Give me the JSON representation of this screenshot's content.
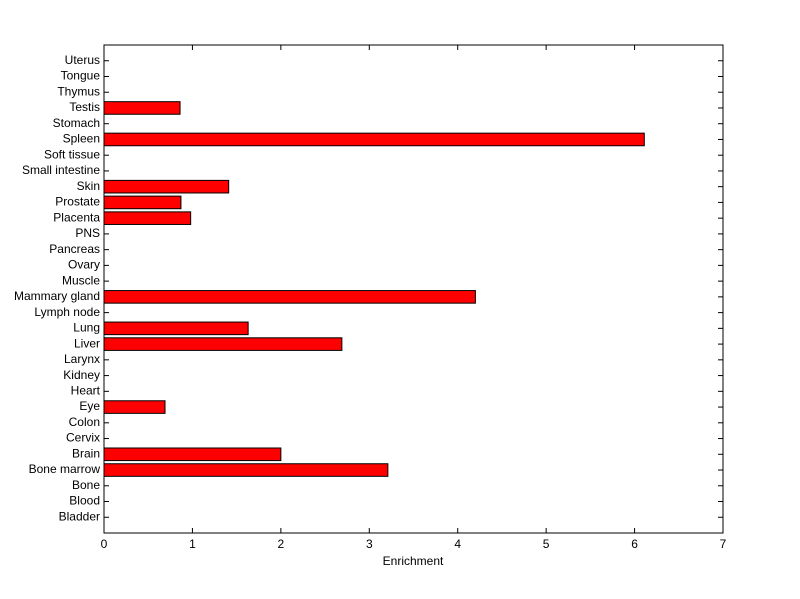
{
  "chart_data": {
    "type": "barh",
    "xlabel": "Enrichment",
    "categories": [
      "Bladder",
      "Blood",
      "Bone",
      "Bone marrow",
      "Brain",
      "Cervix",
      "Colon",
      "Eye",
      "Heart",
      "Kidney",
      "Larynx",
      "Liver",
      "Lung",
      "Lymph node",
      "Mammary gland",
      "Muscle",
      "Ovary",
      "Pancreas",
      "PNS",
      "Placenta",
      "Prostate",
      "Skin",
      "Small intestine",
      "Soft tissue",
      "Spleen",
      "Stomach",
      "Testis",
      "Thymus",
      "Tongue",
      "Uterus"
    ],
    "values": [
      0,
      0,
      0,
      3.21,
      2.0,
      0,
      0,
      0.69,
      0,
      0,
      0,
      2.69,
      1.63,
      0,
      4.2,
      0,
      0,
      0,
      0,
      0.98,
      0.87,
      1.41,
      0,
      0,
      6.11,
      0,
      0.86,
      0,
      0,
      0
    ],
    "color": "#ff0000",
    "xlim": [
      0,
      7
    ],
    "xticks": [
      0,
      1,
      2,
      3,
      4,
      5,
      6,
      7
    ]
  }
}
